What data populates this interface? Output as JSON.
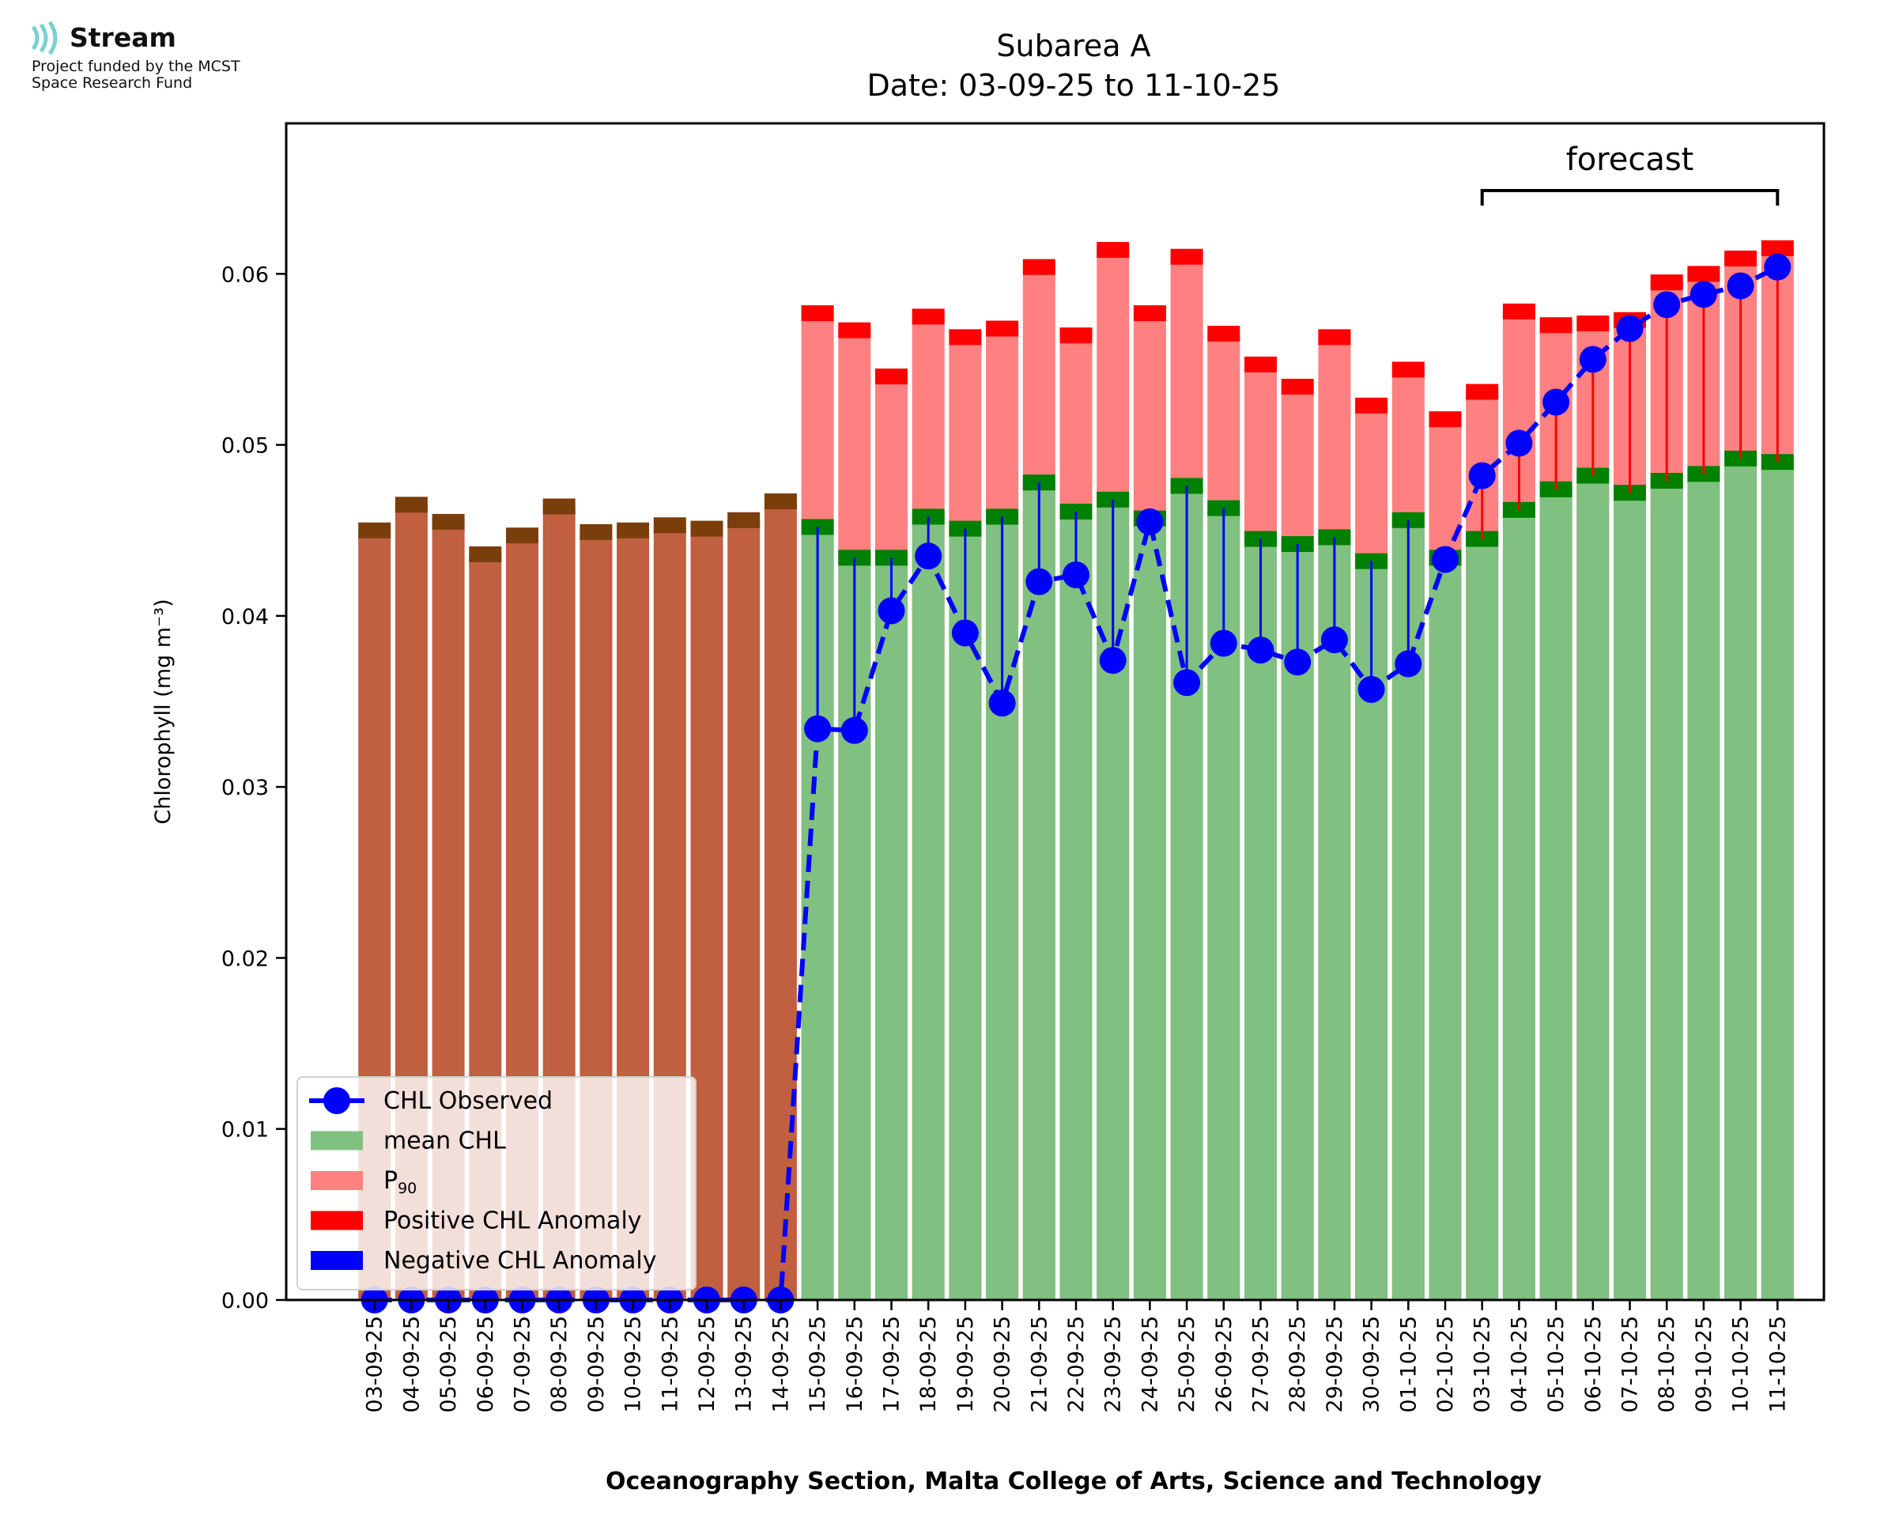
{
  "logo": {
    "brand": "Stream",
    "fund_line1": "Project funded by the MCST",
    "fund_line2": "Space Research Fund",
    "icon": "stream-waves-icon",
    "color": "#79d1d3"
  },
  "chart_data": {
    "type": "bar",
    "title": "Subarea A",
    "subtitle": "Date: 03-09-25 to 11-10-25",
    "ylabel": "Chlorophyll (mg m⁻³)",
    "xlabel": "Oceanography Section, Malta College of Arts, Science and Technology",
    "ylim": [
      0,
      0.0688
    ],
    "yticks": [
      0.0,
      0.01,
      0.02,
      0.03,
      0.04,
      0.05,
      0.06
    ],
    "ytick_labels": [
      "0.00",
      "0.01",
      "0.02",
      "0.03",
      "0.04",
      "0.05",
      "0.06"
    ],
    "annotation": "forecast",
    "forecast_range": [
      "03-10-25",
      "11-10-25"
    ],
    "categories": [
      "03-09-25",
      "04-09-25",
      "05-09-25",
      "06-09-25",
      "07-09-25",
      "08-09-25",
      "09-09-25",
      "10-09-25",
      "11-09-25",
      "12-09-25",
      "13-09-25",
      "14-09-25",
      "15-09-25",
      "16-09-25",
      "17-09-25",
      "18-09-25",
      "19-09-25",
      "20-09-25",
      "21-09-25",
      "22-09-25",
      "23-09-25",
      "24-09-25",
      "25-09-25",
      "26-09-25",
      "27-09-25",
      "28-09-25",
      "29-09-25",
      "30-09-25",
      "01-10-25",
      "02-10-25",
      "03-10-25",
      "04-10-25",
      "05-10-25",
      "06-10-25",
      "07-10-25",
      "08-10-25",
      "09-10-25",
      "10-10-25",
      "11-10-25"
    ],
    "mean_chl": [
      0.045,
      0.0465,
      0.0455,
      0.0436,
      0.0447,
      0.0464,
      0.0449,
      0.045,
      0.0453,
      0.0451,
      0.0456,
      0.0467,
      0.0452,
      0.0434,
      0.0434,
      0.0458,
      0.0451,
      0.0458,
      0.0478,
      0.0461,
      0.0468,
      0.0457,
      0.0476,
      0.0463,
      0.0445,
      0.0442,
      0.0446,
      0.0432,
      0.0456,
      0.0434,
      0.0445,
      0.0462,
      0.0474,
      0.0482,
      0.0472,
      0.0479,
      0.0483,
      0.0492,
      0.049
    ],
    "p90": [
      null,
      null,
      null,
      null,
      null,
      null,
      null,
      null,
      null,
      null,
      null,
      null,
      0.0577,
      0.0567,
      0.054,
      0.0575,
      0.0563,
      0.0568,
      0.0604,
      0.0564,
      0.0614,
      0.0577,
      0.061,
      0.0565,
      0.0547,
      0.0534,
      0.0563,
      0.0523,
      0.0544,
      0.0515,
      0.0531,
      0.0578,
      0.057,
      0.0571,
      0.0573,
      0.0595,
      0.06,
      0.0609,
      0.0615
    ],
    "observed": [
      0,
      0,
      0,
      0,
      0,
      0,
      0,
      0,
      0,
      0,
      0,
      0,
      0.0334,
      0.0333,
      0.0403,
      0.0435,
      0.039,
      0.0349,
      0.042,
      0.0424,
      0.0374,
      0.0455,
      0.0361,
      0.0384,
      0.038,
      0.0373,
      0.0386,
      0.0357,
      0.0372,
      0.0433,
      0.0482,
      0.0501,
      0.0525,
      0.055,
      0.0568,
      0.0582,
      0.0588,
      0.0593,
      0.0604
    ],
    "legend": [
      {
        "label": "CHL Observed",
        "color": "#0000ff",
        "kind": "line-marker"
      },
      {
        "label": "mean CHL",
        "color": "#80c080",
        "kind": "patch"
      },
      {
        "label": "P",
        "sub": "90",
        "color": "#ff8080",
        "kind": "patch"
      },
      {
        "label": "Positive CHL Anomaly",
        "color": "#ff0000",
        "kind": "patch"
      },
      {
        "label": "Negative CHL Anomaly",
        "color": "#0000ff",
        "kind": "patch"
      }
    ],
    "legend_position": "lower-left",
    "colors": {
      "historic_bar": "#c06040",
      "historic_cap": "#7a3e0a",
      "mean_bar": "#80c080",
      "mean_cap": "#008000",
      "p90_bar": "#ff8080",
      "p90_cap": "#ff0000",
      "observed": "#0000ff",
      "positive_anomaly": "#ff0000",
      "negative_anomaly": "#0000ff"
    },
    "grid": false
  }
}
